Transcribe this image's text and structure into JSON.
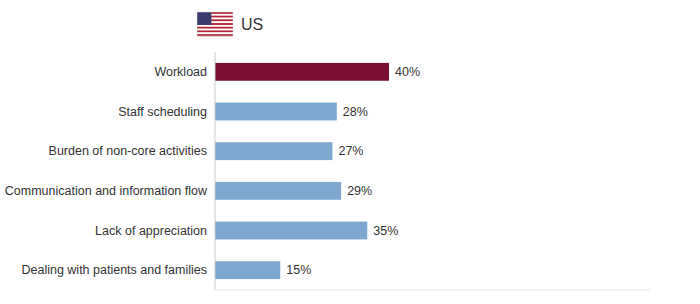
{
  "chart_data": {
    "type": "bar",
    "orientation": "horizontal",
    "categories": [
      "Dealing with patients and families",
      "Lack of appreciation",
      "Communication and information flow",
      "Burden of non-core activities",
      "Staff scheduling",
      "Workload"
    ],
    "series": [
      {
        "name": "US",
        "values": [
          15,
          35,
          29,
          27,
          28,
          40
        ],
        "value_labels": [
          "15%",
          "35%",
          "29%",
          "27%",
          "28%",
          "40%"
        ],
        "colors": [
          "#7fa8d0",
          "#7fa8d0",
          "#7fa8d0",
          "#7fa8d0",
          "#7fa8d0",
          "#7a1035"
        ]
      }
    ],
    "xlim": [
      0,
      100
    ],
    "grid": false,
    "legend": "top",
    "data_labels": true,
    "tick_labels": "y"
  }
}
